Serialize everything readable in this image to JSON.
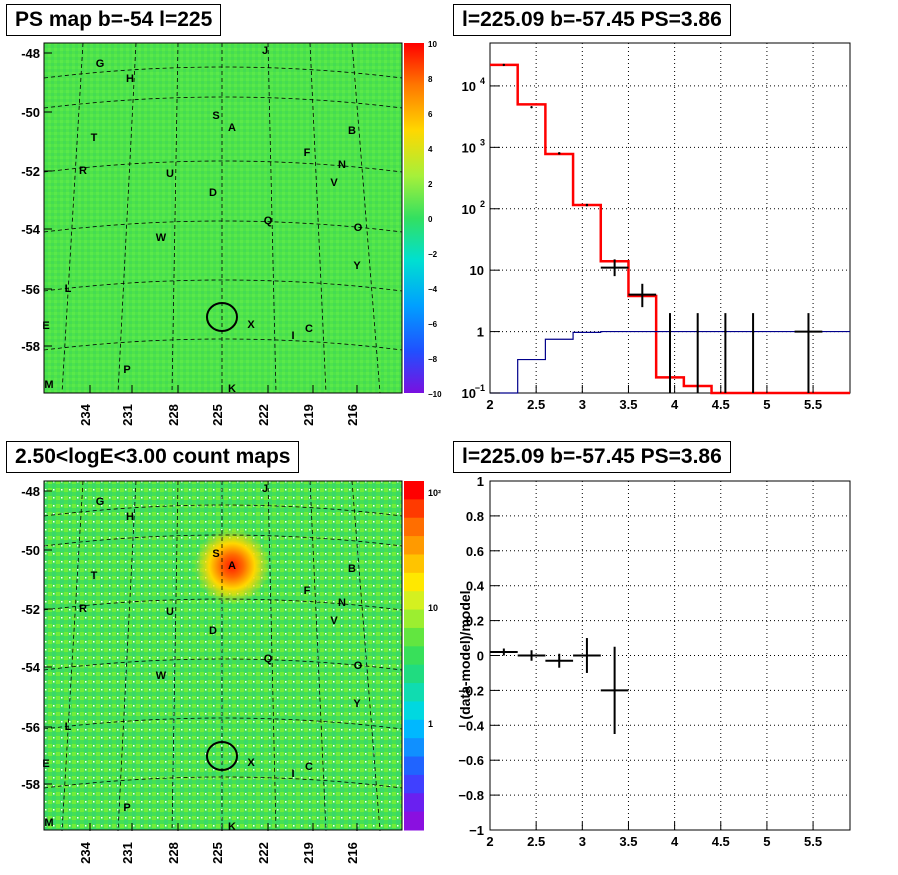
{
  "panels": {
    "map_top": {
      "title": "PS map b=-54 l=225"
    },
    "spec_top": {
      "title": "l=225.09 b=-57.45 PS=3.86"
    },
    "map_bottom": {
      "title": "2.50<logE<3.00 count maps"
    },
    "spec_bottom": {
      "title": "l=225.09 b=-57.45 PS=3.86"
    }
  },
  "map_axes": {
    "lat_labels": [
      "-48",
      "-50",
      "-52",
      "-54",
      "-56",
      "-58"
    ],
    "lon_labels": [
      "234",
      "231",
      "228",
      "225",
      "222",
      "219",
      "216"
    ]
  },
  "sources": [
    "G",
    "H",
    "J",
    "S",
    "A",
    "B",
    "T",
    "F",
    "N",
    "R",
    "U",
    "V",
    "D",
    "Q",
    "O",
    "W",
    "Y",
    "L",
    "X",
    "C",
    "I",
    "E",
    "P",
    "M",
    "K"
  ],
  "colorbar_top": {
    "labels": [
      "10",
      "8",
      "6",
      "4",
      "2",
      "0",
      "−2",
      "−4",
      "−6",
      "−8",
      "−10"
    ]
  },
  "colorbar_bottom": {
    "labels": [
      "10²",
      "10",
      "1"
    ]
  },
  "colors": {
    "data": "#000000",
    "model_total": "#ff0000",
    "model_source": "#00008b",
    "map_bg": "#4ee34a",
    "hot": "#ff0000"
  },
  "chart_data": [
    {
      "type": "line",
      "title": "l=225.09 b=-57.45 PS=3.86",
      "log_y": true,
      "xlim": [
        2,
        5.9
      ],
      "ylim": [
        0.1,
        50000
      ],
      "x_ticks": [
        "2",
        "2.5",
        "3",
        "3.5",
        "4",
        "4.5",
        "5",
        "5.5"
      ],
      "y_ticks": [
        "10^{-1}",
        "1",
        "10",
        "10^{2}",
        "10^{3}",
        "10^{4}"
      ],
      "grid": true,
      "series": [
        {
          "style": "step",
          "color": "#ff0000",
          "edges": [
            2.0,
            2.3,
            2.6,
            2.9,
            3.2,
            3.5,
            3.8,
            4.1,
            4.4,
            5.9
          ],
          "values": [
            22000,
            5000,
            780,
            115,
            14,
            3.8,
            0.18,
            0.13,
            0.1
          ]
        },
        {
          "style": "step",
          "color": "#00008b",
          "edges": [
            2.0,
            2.3,
            2.6,
            2.9,
            3.2,
            5.9
          ],
          "values": [
            0.1,
            0.35,
            0.75,
            0.97,
            1.0
          ]
        },
        {
          "style": "errorbar",
          "color": "#000000",
          "x": [
            2.15,
            2.45,
            2.75,
            3.05,
            3.35,
            3.65,
            3.95,
            4.25,
            4.55,
            4.85,
            5.45
          ],
          "y": [
            22000,
            4500,
            800,
            115,
            11,
            4,
            1,
            1,
            1,
            1,
            1
          ],
          "ylow": [
            21500,
            4400,
            770,
            110,
            8,
            2.5,
            0.1,
            0.1,
            0.1,
            0.1,
            0.1
          ],
          "yhigh": [
            22500,
            4600,
            830,
            120,
            15,
            6,
            2,
            2,
            2,
            2,
            2
          ],
          "xerr": [
            0,
            0,
            0,
            0,
            0.15,
            0.15,
            0,
            0,
            0,
            0,
            0.15
          ]
        }
      ]
    },
    {
      "type": "scatter",
      "title": "l=225.09 b=-57.45 PS=3.86",
      "ylabel": "(data-model)/model",
      "xlim": [
        2,
        5.9
      ],
      "ylim": [
        -1,
        1
      ],
      "x_ticks": [
        "2",
        "2.5",
        "3",
        "3.5",
        "4",
        "4.5",
        "5",
        "5.5"
      ],
      "y_ticks": [
        "−1",
        "−0.8",
        "−0.6",
        "−0.4",
        "−0.2",
        "0",
        "0.2",
        "0.4",
        "0.6",
        "0.8",
        "1"
      ],
      "grid": true,
      "series": [
        {
          "style": "errorbar",
          "color": "#000000",
          "x": [
            2.15,
            2.45,
            2.75,
            3.05,
            3.35
          ],
          "y": [
            0.02,
            0.0,
            -0.03,
            0.0,
            -0.2
          ],
          "yerr": [
            0.02,
            0.03,
            0.04,
            0.1,
            0.25
          ],
          "xerr": [
            0.15,
            0.15,
            0.15,
            0.15,
            0.15
          ]
        }
      ]
    }
  ]
}
